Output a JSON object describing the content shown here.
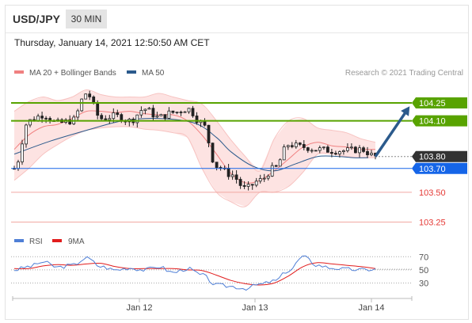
{
  "header": {
    "symbol": "USD/JPY",
    "timeframe": "30 MIN"
  },
  "datetime": "Thursday, January 14, 2021 12:50:50 AM CET",
  "legend": {
    "bb_label": "MA 20 + Bollinger Bands",
    "ma50_label": "MA 50",
    "credit": "Research © 2021 Trading Central"
  },
  "rsi_legend": {
    "rsi_label": "RSI",
    "ma_label": "9MA"
  },
  "colors": {
    "green": "#58a300",
    "blue": "#1565e8",
    "dark": "#333333",
    "red": "#e53935",
    "bb_fill": "#fde0df",
    "bb_line": "#f08080",
    "ma50": "#2b5a8c",
    "rsi": "#4f7fd6",
    "rsi_ma": "#e11d1d"
  },
  "chart_data": {
    "type": "line",
    "title": "USD/JPY",
    "timeframe": "30 MIN",
    "x_labels": [
      "Jan 12",
      "Jan 13",
      "Jan 14"
    ],
    "ylim": [
      103.2,
      104.37
    ],
    "series": [
      {
        "name": "MA 20 + Bollinger Bands",
        "type": "band",
        "x": [
          0,
          4,
          8,
          12,
          16,
          20,
          24,
          28,
          32,
          36,
          40,
          44,
          48,
          52,
          56,
          60,
          64,
          68,
          72,
          76,
          80,
          84,
          88,
          92,
          96,
          100
        ],
        "upper": [
          104.18,
          104.26,
          104.3,
          104.27,
          104.3,
          104.36,
          104.32,
          104.3,
          104.3,
          104.3,
          104.33,
          104.3,
          104.27,
          104.24,
          104.1,
          103.94,
          103.8,
          103.68,
          103.95,
          104.1,
          104.12,
          104.04,
          104.02,
          104.0,
          103.95,
          103.92
        ],
        "middle": [
          103.86,
          103.98,
          104.05,
          104.07,
          104.12,
          104.18,
          104.18,
          104.17,
          104.18,
          104.16,
          104.15,
          104.15,
          104.1,
          103.98,
          103.82,
          103.66,
          103.58,
          103.6,
          103.68,
          103.78,
          103.88,
          103.92,
          103.89,
          103.88,
          103.86,
          103.86
        ],
        "lower": [
          103.6,
          103.7,
          103.82,
          103.9,
          103.97,
          104.02,
          104.04,
          104.05,
          104.05,
          104.03,
          104.02,
          104.0,
          103.96,
          103.7,
          103.5,
          103.42,
          103.38,
          103.5,
          103.5,
          103.55,
          103.67,
          103.82,
          103.82,
          103.8,
          103.79,
          103.79
        ]
      },
      {
        "name": "MA 50",
        "type": "line",
        "x": [
          0,
          10,
          20,
          30,
          40,
          50,
          56,
          60,
          66,
          72,
          78,
          84,
          90,
          94,
          98
        ],
        "y": [
          103.82,
          103.93,
          104.02,
          104.1,
          104.12,
          104.08,
          103.96,
          103.84,
          103.72,
          103.68,
          103.74,
          103.8,
          103.8,
          103.79,
          103.79
        ]
      },
      {
        "name": "USD/JPY 30 MIN",
        "type": "candlestick",
        "x": [
          0,
          4,
          8,
          12,
          16,
          20,
          24,
          28,
          32,
          36,
          40,
          44,
          48,
          52,
          56,
          60,
          64,
          68,
          72,
          76,
          80,
          84,
          88,
          92,
          96,
          100
        ],
        "close": [
          103.7,
          104.1,
          104.15,
          104.08,
          104.1,
          104.33,
          104.12,
          104.14,
          104.1,
          104.2,
          104.13,
          104.17,
          104.2,
          104.08,
          103.72,
          103.65,
          103.53,
          103.6,
          103.7,
          103.9,
          103.88,
          103.86,
          103.85,
          103.85,
          103.86,
          103.8
        ]
      },
      {
        "name": "Forecast",
        "type": "arrow",
        "from": [
          100,
          103.8
        ],
        "to": [
          109,
          104.2
        ]
      }
    ],
    "levels": [
      {
        "value": 104.25,
        "label": "104.25",
        "style": "resistance"
      },
      {
        "value": 104.1,
        "label": "104.10",
        "style": "resistance"
      },
      {
        "value": 103.8,
        "label": "103.80",
        "style": "last"
      },
      {
        "value": 103.7,
        "label": "103.70",
        "style": "pivot"
      },
      {
        "value": 103.5,
        "label": "103.50",
        "style": "support"
      },
      {
        "value": 103.25,
        "label": "103.25",
        "style": "support"
      }
    ],
    "rsi": {
      "levels": [
        70,
        50,
        30
      ],
      "ylim": [
        15,
        80
      ],
      "x": [
        0,
        4,
        8,
        12,
        16,
        20,
        24,
        28,
        32,
        36,
        40,
        44,
        48,
        52,
        56,
        60,
        64,
        68,
        72,
        76,
        80,
        84,
        88,
        92,
        96,
        100
      ],
      "rsi": [
        50,
        55,
        62,
        54,
        57,
        68,
        55,
        50,
        53,
        50,
        55,
        46,
        52,
        42,
        27,
        25,
        22,
        28,
        33,
        49,
        70,
        57,
        53,
        51,
        50,
        51
      ],
      "ma": [
        52,
        52,
        56,
        58,
        57,
        59,
        60,
        55,
        52,
        52,
        52,
        52,
        50,
        49,
        42,
        34,
        29,
        27,
        30,
        41,
        55,
        61,
        59,
        57,
        55,
        52
      ]
    }
  }
}
